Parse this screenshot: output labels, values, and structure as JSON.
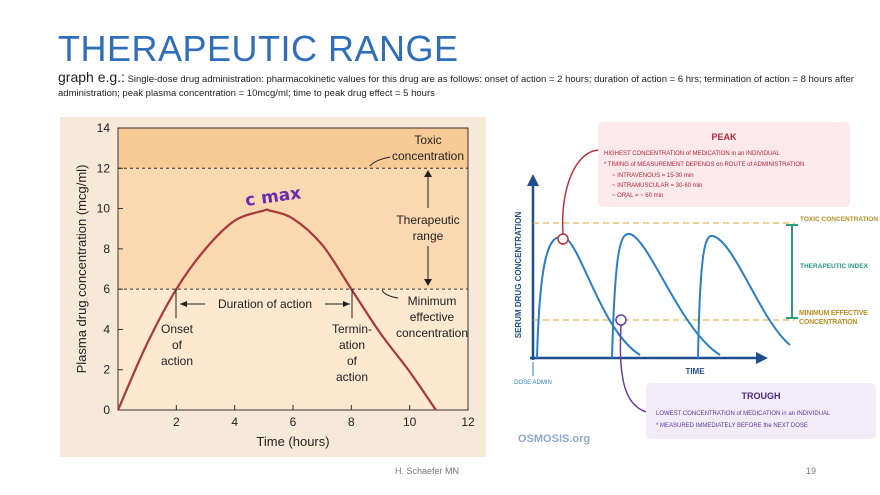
{
  "slide": {
    "title": "THERAPEUTIC RANGE",
    "subtitle_lead": "graph e.g.:",
    "subtitle_text": "Single-dose drug administration: pharmacokinetic values for this drug are as follows: onset of action = 2 hours; duration of action = 6 hrs; termination of action = 8 hours after administration; peak plasma concentration = 10mcg/ml; time to peak drug effect = 5 hours",
    "footer_author": "H. Schaefer MN",
    "page_number": "19"
  },
  "chart_data": [
    {
      "type": "line",
      "xlabel": "Time (hours)",
      "ylabel": "Plasma drug concentration (mcg/ml)",
      "xlim": [
        0,
        12
      ],
      "ylim": [
        0,
        14
      ],
      "xticks": [
        "2",
        "4",
        "6",
        "8",
        "10",
        "12"
      ],
      "yticks": [
        "0",
        "2",
        "4",
        "6",
        "8",
        "10",
        "12",
        "14"
      ],
      "x": [
        0,
        1,
        2,
        3,
        4,
        5,
        5.2,
        6,
        7,
        8,
        9,
        10,
        10.9
      ],
      "y": [
        0,
        3.3,
        6,
        8,
        9.4,
        9.9,
        9.9,
        9.5,
        8.2,
        6,
        3.8,
        1.9,
        0
      ],
      "line_color": "#a8393b",
      "zones": [
        {
          "from": 12,
          "to": 14,
          "color": "#f6c995"
        },
        {
          "from": 6,
          "to": 12,
          "color": "#fad8b0"
        },
        {
          "from": 0,
          "to": 6,
          "color": "#fde8d0"
        }
      ],
      "annotations": {
        "toxic": "Toxic concentration",
        "therapeutic": "Therapeutic range",
        "mec": "Minimum effective concentration",
        "duration": "Duration of action",
        "onset": "Onset of action",
        "termination": "Termin- ation of action",
        "cmax": "c max"
      }
    },
    {
      "type": "line",
      "xlabel": "TIME",
      "ylabel": "SERUM DRUG CONCENTRATION",
      "x_marker": "DOSE ADMIN",
      "line_color": "#2a7fc4",
      "toxic_label": "TOXIC CONCENTRATION",
      "index_label": "THERAPEUTIC INDEX",
      "mec_label": "MINIMUM EFFECTIVE CONCENTRATION",
      "peak": {
        "title": "PEAK",
        "lines": [
          "HIGHEST CONCENTRATION of MEDICATION in an INDIVIDUAL",
          "* TIMING of MEASUREMENT DEPENDS on ROUTE of ADMINISTRATION",
          "~ INTRAVENOUS = 15-30 min",
          "~ INTRAMUSCULAR = 30-60 min",
          "~ ORAL = ~ 60 min"
        ]
      },
      "trough": {
        "title": "TROUGH",
        "lines": [
          "LOWEST CONCENTRATION of MEDICATION in an INDIVIDUAL",
          "* MEASURED IMMEDIATELY BEFORE the NEXT DOSE"
        ]
      },
      "logo": "OSMOSIS.org"
    }
  ]
}
